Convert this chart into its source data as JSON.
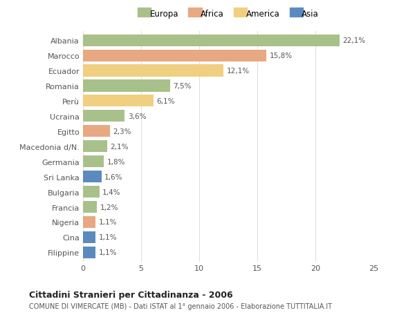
{
  "countries": [
    "Albania",
    "Marocco",
    "Ecuador",
    "Romania",
    "Perù",
    "Ucraina",
    "Egitto",
    "Macedonia d/N.",
    "Germania",
    "Sri Lanka",
    "Bulgaria",
    "Francia",
    "Nigeria",
    "Cina",
    "Filippine"
  ],
  "values": [
    22.1,
    15.8,
    12.1,
    7.5,
    6.1,
    3.6,
    2.3,
    2.1,
    1.8,
    1.6,
    1.4,
    1.2,
    1.1,
    1.1,
    1.1
  ],
  "labels": [
    "22,1%",
    "15,8%",
    "12,1%",
    "7,5%",
    "6,1%",
    "3,6%",
    "2,3%",
    "2,1%",
    "1,8%",
    "1,6%",
    "1,4%",
    "1,2%",
    "1,1%",
    "1,1%",
    "1,1%"
  ],
  "categories": [
    "Europa",
    "Africa",
    "America",
    "Europa",
    "America",
    "Europa",
    "Africa",
    "Europa",
    "Europa",
    "Asia",
    "Europa",
    "Europa",
    "Africa",
    "Asia",
    "Asia"
  ],
  "colors": {
    "Europa": "#a8c08a",
    "Africa": "#e8a882",
    "America": "#f0d080",
    "Asia": "#5b8abf"
  },
  "title": "Cittadini Stranieri per Cittadinanza - 2006",
  "subtitle": "COMUNE DI VIMERCATE (MB) - Dati ISTAT al 1° gennaio 2006 - Elaborazione TUTTITALIA.IT",
  "xlim": [
    0,
    25
  ],
  "xticks": [
    0,
    5,
    10,
    15,
    20,
    25
  ],
  "background_color": "#ffffff",
  "bar_height": 0.78,
  "legend_order": [
    "Europa",
    "Africa",
    "America",
    "Asia"
  ]
}
